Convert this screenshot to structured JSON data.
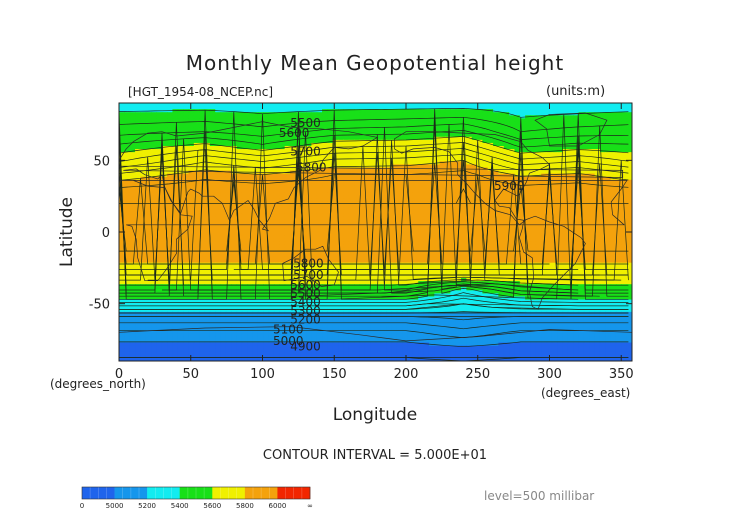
{
  "chart_data": {
    "type": "heatmap",
    "title": "Monthly Mean Geopotential height",
    "file_label": "[HGT_1954-08_NCEP.nc]",
    "units_label": "(units:m)",
    "xlabel": "Longitude",
    "ylabel": "Latitude",
    "x_unit_label": "(degrees_east)",
    "y_unit_label": "(degrees_north)",
    "xlim": [
      0,
      357.5
    ],
    "ylim": [
      -90,
      90
    ],
    "x_ticks": [
      0,
      50,
      100,
      150,
      200,
      250,
      300,
      350
    ],
    "y_ticks": [
      -50,
      0,
      50
    ],
    "contour_interval_text": "CONTOUR INTERVAL = 5.000E+01",
    "level_text": "level=500 millibar",
    "colorbar": {
      "labels": [
        "0",
        "5000",
        "5200",
        "5400",
        "5600",
        "5800",
        "6000",
        "∞"
      ],
      "colors": [
        "#1f64ec",
        "#1596ec",
        "#12ecf0",
        "#18e018",
        "#f0f000",
        "#f4a20c",
        "#f22600"
      ]
    },
    "bands": {
      "latitudes": [
        90,
        80,
        70,
        60,
        50,
        40,
        30,
        20,
        10,
        0,
        -10,
        -20,
        -30,
        -40,
        -50,
        -60,
        -70,
        -80,
        -90
      ],
      "profiles": [
        {
          "lon": 0,
          "values": [
            5370,
            5420,
            5480,
            5560,
            5640,
            5760,
            5860,
            5900,
            5890,
            5880,
            5860,
            5830,
            5700,
            5560,
            5330,
            5130,
            5040,
            4980,
            4940
          ]
        },
        {
          "lon": 60,
          "values": [
            5370,
            5430,
            5500,
            5620,
            5740,
            5830,
            5890,
            5900,
            5890,
            5880,
            5860,
            5830,
            5700,
            5560,
            5330,
            5130,
            5040,
            4980,
            4940
          ]
        },
        {
          "lon": 100,
          "values": [
            5370,
            5410,
            5470,
            5560,
            5690,
            5800,
            5880,
            5900,
            5890,
            5880,
            5860,
            5830,
            5700,
            5560,
            5330,
            5130,
            5040,
            4980,
            4940
          ]
        },
        {
          "lon": 150,
          "values": [
            5370,
            5430,
            5520,
            5640,
            5760,
            5850,
            5890,
            5900,
            5890,
            5880,
            5860,
            5830,
            5700,
            5560,
            5330,
            5130,
            5040,
            4980,
            4940
          ]
        },
        {
          "lon": 200,
          "values": [
            5370,
            5440,
            5530,
            5650,
            5770,
            5850,
            5890,
            5900,
            5890,
            5880,
            5860,
            5830,
            5700,
            5560,
            5330,
            5130,
            5040,
            4980,
            4940
          ]
        },
        {
          "lon": 240,
          "values": [
            5370,
            5450,
            5560,
            5680,
            5800,
            5870,
            5900,
            5900,
            5890,
            5880,
            5860,
            5830,
            5700,
            5380,
            5250,
            5160,
            5080,
            5000,
            4950
          ]
        },
        {
          "lon": 280,
          "values": [
            5370,
            5400,
            5450,
            5540,
            5660,
            5790,
            5870,
            5900,
            5890,
            5880,
            5860,
            5830,
            5700,
            5520,
            5320,
            5130,
            5040,
            4980,
            4940
          ]
        },
        {
          "lon": 320,
          "values": [
            5370,
            5410,
            5470,
            5570,
            5690,
            5810,
            5880,
            5900,
            5890,
            5880,
            5860,
            5830,
            5700,
            5560,
            5330,
            5130,
            5040,
            4980,
            4940
          ]
        },
        {
          "lon": 357.5,
          "values": [
            5370,
            5420,
            5480,
            5560,
            5640,
            5760,
            5860,
            5900,
            5890,
            5880,
            5860,
            5830,
            5700,
            5560,
            5330,
            5130,
            5040,
            4980,
            4940
          ]
        }
      ]
    },
    "contour_labels": [
      {
        "text": "5500",
        "lon": 130,
        "lat": 76
      },
      {
        "text": "5600",
        "lon": 122,
        "lat": 69
      },
      {
        "text": "5700",
        "lon": 130,
        "lat": 56
      },
      {
        "text": "5800",
        "lon": 134,
        "lat": 45
      },
      {
        "text": "5900",
        "lon": 272,
        "lat": 32
      },
      {
        "text": "5800",
        "lon": 132,
        "lat": -22
      },
      {
        "text": "5700",
        "lon": 132,
        "lat": -30
      },
      {
        "text": "5600",
        "lon": 130,
        "lat": -37
      },
      {
        "text": "5500",
        "lon": 130,
        "lat": -43
      },
      {
        "text": "5400",
        "lon": 130,
        "lat": -49
      },
      {
        "text": "5300",
        "lon": 130,
        "lat": -55
      },
      {
        "text": "5200",
        "lon": 130,
        "lat": -61
      },
      {
        "text": "5100",
        "lon": 118,
        "lat": -68
      },
      {
        "text": "5000",
        "lon": 118,
        "lat": -76
      },
      {
        "text": "4900",
        "lon": 130,
        "lat": -80
      }
    ]
  }
}
